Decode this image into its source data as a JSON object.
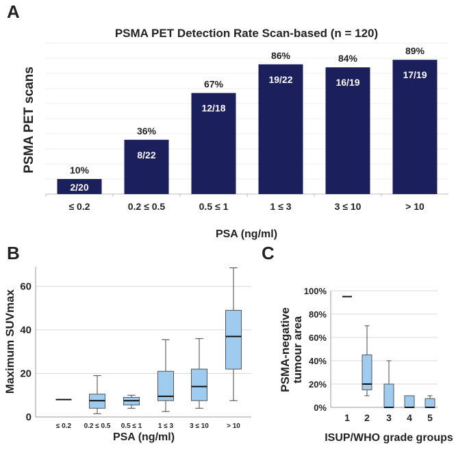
{
  "chart_data": [
    {
      "panel": "A",
      "type": "bar",
      "title": "PSMA PET Detection Rate Scan-based (n = 120)",
      "xlabel": "PSA (ng/ml)",
      "ylabel": "PSMA PET scans",
      "categories": [
        "≤ 0.2",
        "0.2 ≤ 0.5",
        "0.5 ≤ 1",
        "1 ≤ 3",
        "3 ≤ 10",
        "> 10"
      ],
      "values": [
        10,
        36,
        67,
        86,
        84,
        89
      ],
      "value_labels": [
        "10%",
        "36%",
        "67%",
        "86%",
        "84%",
        "89%"
      ],
      "count_labels": [
        "2/20",
        "8/22",
        "12/18",
        "19/22",
        "16/19",
        "17/19"
      ],
      "ylim": [
        0,
        100
      ],
      "grid": true,
      "bar_color": "#1b1f5c"
    },
    {
      "panel": "B",
      "type": "box",
      "xlabel": "PSA (ng/ml)",
      "ylabel": "Maximum SUVmax",
      "categories": [
        "≤ 0.2",
        "0.2 ≤ 0.5",
        "0.5 ≤ 1",
        "1 ≤ 3",
        "3 ≤ 10",
        "> 10"
      ],
      "boxes": [
        {
          "min": 8,
          "q1": 8,
          "median": 8,
          "q3": 8,
          "max": 8
        },
        {
          "min": 1.5,
          "q1": 4,
          "median": 7.5,
          "q3": 10.5,
          "max": 19
        },
        {
          "min": 4,
          "q1": 5.5,
          "median": 7.5,
          "q3": 9,
          "max": 10
        },
        {
          "min": 2.5,
          "q1": 7.5,
          "median": 9.5,
          "q3": 21,
          "max": 35.5
        },
        {
          "min": 4,
          "q1": 7.5,
          "median": 14,
          "q3": 22,
          "max": 36
        },
        {
          "min": 7.5,
          "q1": 22,
          "median": 37,
          "q3": 49,
          "max": 68.5
        }
      ],
      "yticks": [
        "0",
        "20",
        "40",
        "60"
      ],
      "ylim": [
        0,
        69
      ],
      "grid": true,
      "box_color": "#9ecbee"
    },
    {
      "panel": "C",
      "type": "box",
      "xlabel": "ISUP/WHO grade groups",
      "ylabel": [
        "PSMA-negative",
        "tumour area"
      ],
      "categories": [
        "1",
        "2",
        "3",
        "4",
        "5"
      ],
      "boxes": [
        {
          "min": 95,
          "q1": 95,
          "median": 95,
          "q3": 95,
          "max": 95
        },
        {
          "min": 10,
          "q1": 15,
          "median": 20,
          "q3": 45,
          "max": 70
        },
        {
          "min": 0,
          "q1": 0,
          "median": 0,
          "q3": 20,
          "max": 40
        },
        {
          "min": 0,
          "q1": 0,
          "median": 0,
          "q3": 10,
          "max": 10
        },
        {
          "min": 0,
          "q1": 0,
          "median": 0,
          "q3": 7.5,
          "max": 10
        }
      ],
      "yticks": [
        "0%",
        "20%",
        "40%",
        "60%",
        "80%",
        "100%"
      ],
      "ylim": [
        0,
        100
      ],
      "grid": true,
      "box_color": "#9ecbee"
    }
  ],
  "panel_letters": [
    "A",
    "B",
    "C"
  ]
}
